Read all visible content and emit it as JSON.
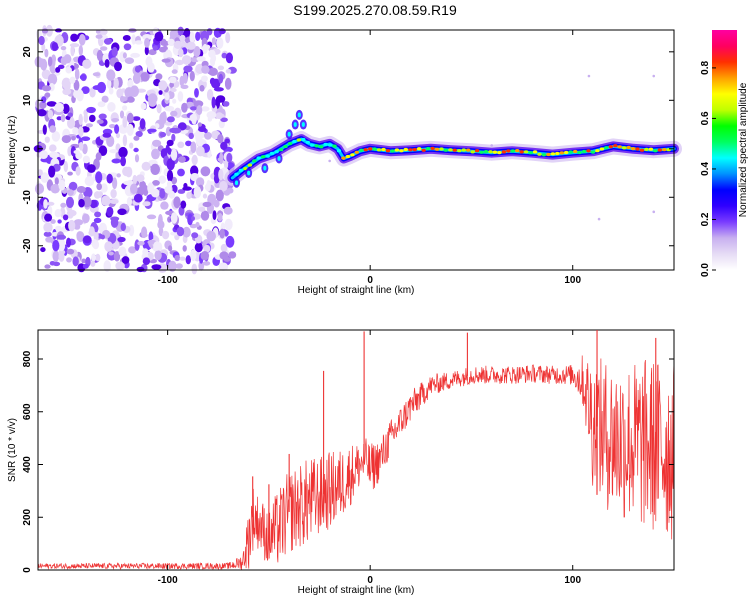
{
  "title": "S199.2025.270.08.59.R19",
  "chart_data": [
    {
      "type": "heatmap",
      "title": "S199.2025.270.08.59.R19",
      "xlabel": "Height of straight line (km)",
      "ylabel": "Frequency (Hz)",
      "xlim": [
        -164,
        150
      ],
      "ylim": [
        -25,
        24.5
      ],
      "xticks": [
        -100,
        0,
        100
      ],
      "yticks": [
        -20,
        -10,
        0,
        10,
        20
      ],
      "noise_region_x": [
        -164,
        -70
      ],
      "signal_ridge": {
        "x": [
          -68,
          -62,
          -55,
          -48,
          -40,
          -34,
          -30,
          -25,
          -20,
          -16,
          -13,
          -10,
          -5,
          0,
          10,
          20,
          30,
          40,
          50,
          60,
          70,
          80,
          90,
          100,
          110,
          120,
          130,
          140,
          150
        ],
        "y": [
          -6,
          -4,
          -2,
          -1,
          1,
          2,
          1,
          0.5,
          1,
          0,
          -2,
          -1.5,
          -0.5,
          0,
          -0.5,
          -0.3,
          0,
          -0.3,
          -0.5,
          -0.8,
          -0.5,
          -0.8,
          -1.2,
          -0.8,
          -0.5,
          0.5,
          0,
          -0.3,
          0
        ]
      },
      "colorbar": {
        "label": "Normalized spectral amplitude",
        "range": [
          0.0,
          0.95
        ],
        "ticks": [
          0.0,
          0.2,
          0.4,
          0.6,
          0.8
        ],
        "colors": [
          "#ffffff",
          "#e6dcf5",
          "#c8b0f0",
          "#7a3cff",
          "#3000ff",
          "#0000ff",
          "#0090ff",
          "#00ffff",
          "#00ff60",
          "#00ff00",
          "#c0ff00",
          "#ffff00",
          "#ffa000",
          "#ff3000",
          "#ff0060",
          "#ff00a0"
        ]
      }
    },
    {
      "type": "line",
      "xlabel": "Height of straight line (km)",
      "ylabel": "SNR (10 * v/v)",
      "xlim": [
        -164,
        150
      ],
      "ylim": [
        0,
        910
      ],
      "xticks": [
        -100,
        0,
        100
      ],
      "yticks": [
        0,
        200,
        400,
        600,
        800
      ],
      "series": [
        {
          "name": "SNR",
          "color": "#ee3333",
          "envelope": {
            "x": [
              -164,
              -70,
              -63,
              -60,
              -58,
              -55,
              -50,
              -45,
              -40,
              -35,
              -30,
              -25,
              -20,
              -15,
              -10,
              -5,
              -2,
              0,
              5,
              10,
              15,
              20,
              25,
              30,
              40,
              50,
              60,
              70,
              80,
              90,
              100,
              105,
              110,
              115,
              120,
              130,
              140,
              150
            ],
            "mean": [
              15,
              15,
              30,
              120,
              200,
              180,
              120,
              160,
              220,
              240,
              260,
              280,
              300,
              320,
              360,
              400,
              420,
              380,
              420,
              500,
              560,
              620,
              660,
              700,
              720,
              740,
              740,
              740,
              745,
              740,
              740,
              720,
              560,
              520,
              500,
              480,
              470,
              450
            ],
            "amp": [
              10,
              12,
              30,
              120,
              130,
              100,
              120,
              150,
              160,
              160,
              170,
              150,
              150,
              140,
              120,
              90,
              80,
              100,
              80,
              70,
              60,
              60,
              50,
              40,
              35,
              35,
              35,
              35,
              35,
              35,
              40,
              100,
              260,
              280,
              300,
              320,
              340,
              350
            ]
          },
          "spikes": [
            {
              "x": -58,
              "y": 355
            },
            {
              "x": -50,
              "y": 325
            },
            {
              "x": -40,
              "y": 440
            },
            {
              "x": -23,
              "y": 755
            },
            {
              "x": -3,
              "y": 905
            },
            {
              "x": 48,
              "y": 900
            },
            {
              "x": 112,
              "y": 910
            },
            {
              "x": 141,
              "y": 880
            }
          ]
        }
      ]
    }
  ]
}
